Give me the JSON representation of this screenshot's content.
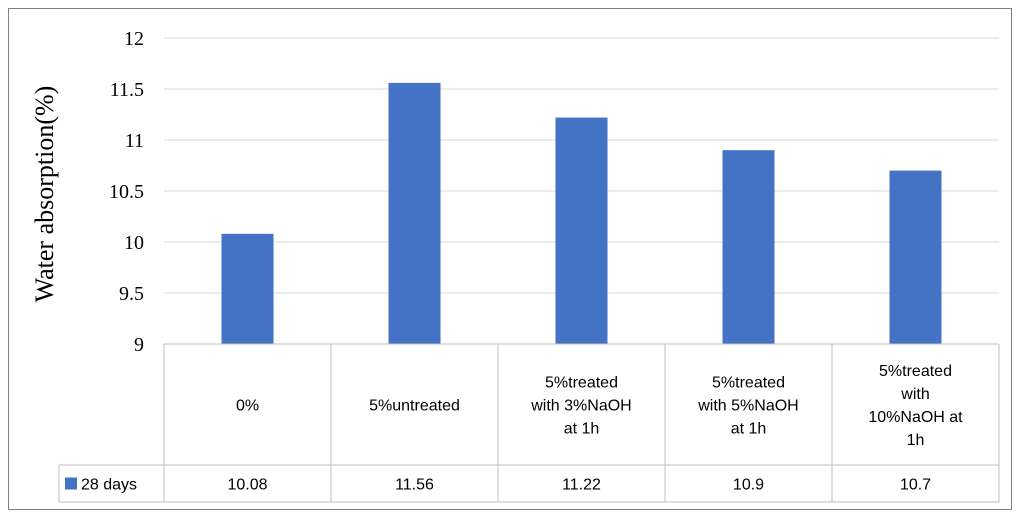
{
  "chart_data": {
    "type": "bar",
    "ylabel": "Water absorption(%)",
    "ylim": [
      9,
      12
    ],
    "yticks": [
      "9",
      "9.5",
      "10",
      "10.5",
      "11",
      "11.5",
      "12"
    ],
    "grid": true,
    "legend_placement": "data-table-left",
    "categories": [
      [
        "0%"
      ],
      [
        "5%untreated"
      ],
      [
        "5%treated",
        "with 3%NaOH",
        "at 1h"
      ],
      [
        "5%treated",
        "with 5%NaOH",
        "at 1h"
      ],
      [
        "5%treated",
        "with",
        "10%NaOH at",
        "1h"
      ]
    ],
    "series": [
      {
        "name": "28 days",
        "values": [
          10.08,
          11.56,
          11.22,
          10.9,
          10.7
        ],
        "labels": [
          "10.08",
          "11.56",
          "11.22",
          "10.9",
          "10.7"
        ],
        "color": "#4472c4"
      }
    ]
  }
}
